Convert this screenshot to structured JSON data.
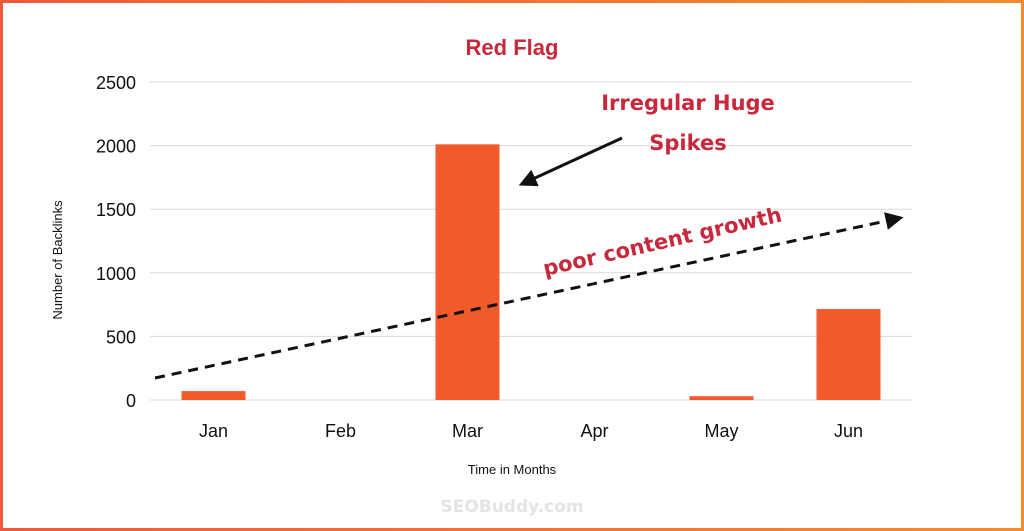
{
  "chart_data": {
    "type": "bar",
    "title": "Red Flag",
    "xlabel": "Time in Months",
    "ylabel": "Number of Backlinks",
    "categories": [
      "Jan",
      "Feb",
      "Mar",
      "Apr",
      "May",
      "Jun"
    ],
    "values": [
      70,
      0,
      2010,
      0,
      30,
      715
    ],
    "ylim": [
      0,
      2500
    ],
    "yticks": [
      "0",
      "500",
      "1000",
      "1500",
      "2000",
      "2500"
    ],
    "grid": true,
    "bar_color": "#f15a2b",
    "annotations": {
      "spike_line1": "Irregular Huge",
      "spike_line2": "Spikes",
      "trend": "poor content growth"
    }
  },
  "watermark": "SEOBuddy.com",
  "colors": {
    "accent_text": "#c8283c",
    "bar": "#f15a2b",
    "border_start": "#ef5a3a",
    "border_end": "#f28b30"
  }
}
